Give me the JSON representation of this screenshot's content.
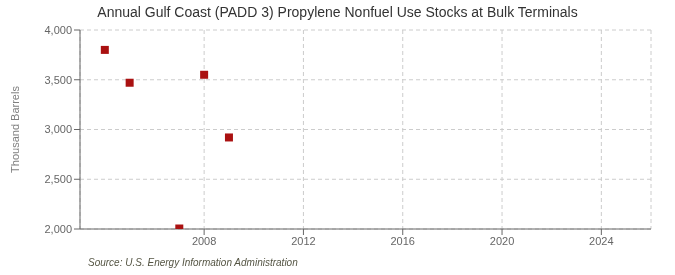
{
  "chart_data": {
    "type": "scatter",
    "title": "Annual Gulf Coast (PADD 3) Propylene Nonfuel Use Stocks at Bulk Terminals",
    "ylabel": "Thousand Barrels",
    "annotations": [
      "Source: U.S. Energy Information Administration"
    ],
    "x": [
      2004,
      2005,
      2007,
      2008,
      2009
    ],
    "values": [
      3800,
      3470,
      2005,
      3550,
      2920
    ],
    "color": "#aa1111",
    "marker": "square",
    "xlim": [
      2003,
      2026
    ],
    "ylim": [
      2000,
      4000
    ],
    "xticks": [
      2008,
      2012,
      2016,
      2020,
      2024
    ],
    "yticks": [
      {
        "value": 2000,
        "label": "2,000"
      },
      {
        "value": 2500,
        "label": "2,500"
      },
      {
        "value": 3000,
        "label": "3,000"
      },
      {
        "value": 3500,
        "label": "3,500"
      },
      {
        "value": 4000,
        "label": "4,000"
      }
    ],
    "grid": true
  }
}
